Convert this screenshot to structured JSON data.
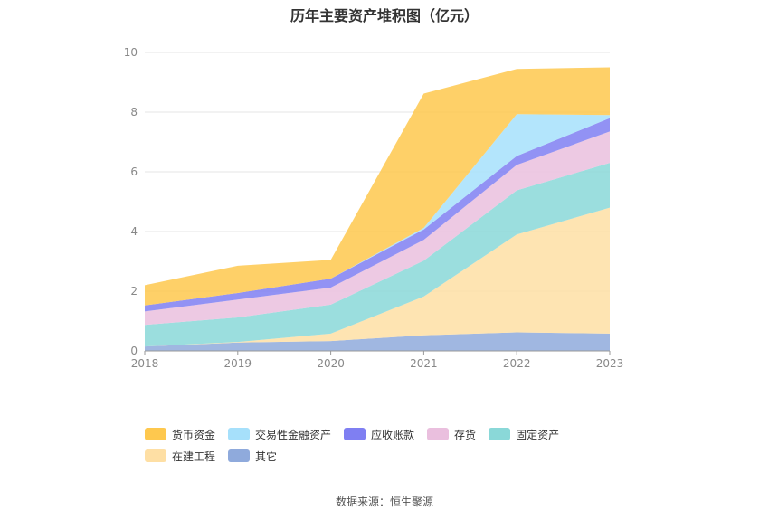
{
  "chart_data": {
    "type": "area",
    "stacked": true,
    "title": "历年主要资产堆积图（亿元）",
    "categories": [
      "2018",
      "2019",
      "2020",
      "2021",
      "2022",
      "2023"
    ],
    "yticks": [
      "0",
      "2",
      "4",
      "6",
      "8",
      "10"
    ],
    "ylim": [
      0,
      10
    ],
    "grid": true,
    "legend_position": "bottom",
    "series": [
      {
        "name": "其它",
        "color": "#8faadc",
        "values": [
          0.15,
          0.28,
          0.33,
          0.52,
          0.62,
          0.58
        ]
      },
      {
        "name": "在建工程",
        "color": "#fedfa4",
        "values": [
          0.0,
          0.02,
          0.25,
          1.3,
          3.28,
          4.22
        ]
      },
      {
        "name": "固定资产",
        "color": "#8ad8d8",
        "values": [
          0.72,
          0.82,
          0.97,
          1.2,
          1.48,
          1.5
        ]
      },
      {
        "name": "存货",
        "color": "#eabfde",
        "values": [
          0.45,
          0.6,
          0.57,
          0.7,
          0.85,
          1.05
        ]
      },
      {
        "name": "应收账款",
        "color": "#7f7ff2",
        "values": [
          0.2,
          0.22,
          0.3,
          0.35,
          0.3,
          0.45
        ]
      },
      {
        "name": "交易性金融资产",
        "color": "#a6e0fb",
        "values": [
          0.0,
          0.0,
          0.0,
          0.05,
          1.4,
          0.1
        ]
      },
      {
        "name": "货币资金",
        "color": "#fec84e",
        "values": [
          0.68,
          0.91,
          0.63,
          4.5,
          1.52,
          1.6
        ]
      }
    ]
  },
  "footer": {
    "source": "数据来源：恒生聚源"
  }
}
